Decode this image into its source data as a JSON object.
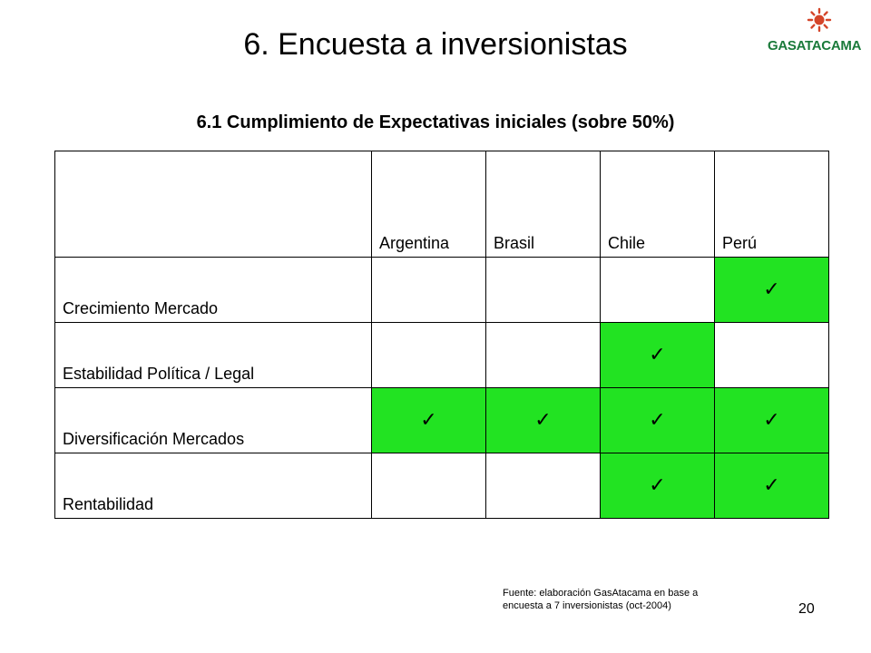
{
  "slide": {
    "title": "6. Encuesta a inversionistas",
    "subtitle": "6.1 Cumplimiento de Expectativas iniciales (sobre 50%)",
    "logo_text": "GASATACAMA",
    "source_line1": "Fuente: elaboración GasAtacama en base a",
    "source_line2": "encuesta a 7 inversionistas (oct-2004)",
    "page_number": "20"
  },
  "table": {
    "columns": [
      "Argentina",
      "Brasil",
      "Chile",
      "Perú"
    ],
    "check_symbol": "✓",
    "check_color": "#22e322",
    "rows": [
      {
        "label": "Crecimiento Mercado",
        "checks": [
          false,
          false,
          false,
          true
        ]
      },
      {
        "label": "Estabilidad Política / Legal",
        "checks": [
          false,
          false,
          true,
          false
        ]
      },
      {
        "label": "Diversificación Mercados",
        "checks": [
          true,
          true,
          true,
          true
        ]
      },
      {
        "label": "Rentabilidad",
        "checks": [
          false,
          false,
          true,
          true
        ]
      }
    ]
  }
}
